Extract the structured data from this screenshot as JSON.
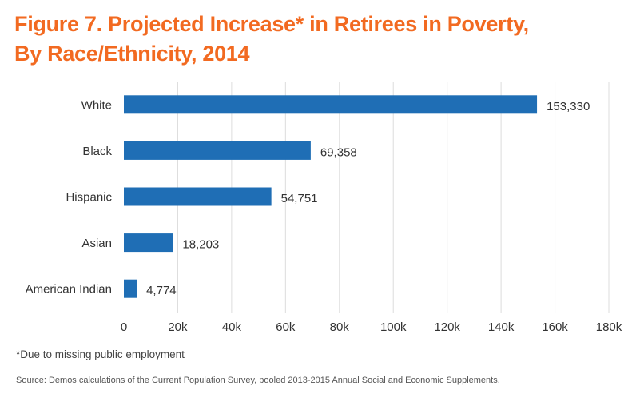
{
  "title": {
    "line1": "Figure 7. Projected Increase* in Retirees in Poverty,",
    "line2": "By Race/Ethnicity, 2014"
  },
  "footnote": "*Due to missing public employment",
  "source": "Source: Demos calculations of the Current Population Survey, pooled 2013-2015 Annual Social and Economic Supplements.",
  "colors": {
    "title": "#f26a21",
    "bar": "#1f6eb5",
    "grid": "#dcdcdc",
    "text": "#333333"
  },
  "chart_data": {
    "type": "bar",
    "orientation": "horizontal",
    "categories": [
      "White",
      "Black",
      "Hispanic",
      "Asian",
      "American Indian"
    ],
    "values": [
      153330,
      69358,
      54751,
      18203,
      4774
    ],
    "value_labels": [
      "153,330",
      "69,358",
      "54,751",
      "18,203",
      "4,774"
    ],
    "xlim": [
      0,
      180000
    ],
    "x_ticks": [
      0,
      20000,
      40000,
      60000,
      80000,
      100000,
      120000,
      140000,
      160000,
      180000
    ],
    "x_tick_labels": [
      "0",
      "20k",
      "40k",
      "60k",
      "80k",
      "100k",
      "120k",
      "140k",
      "160k",
      "180k"
    ],
    "grid": true
  }
}
